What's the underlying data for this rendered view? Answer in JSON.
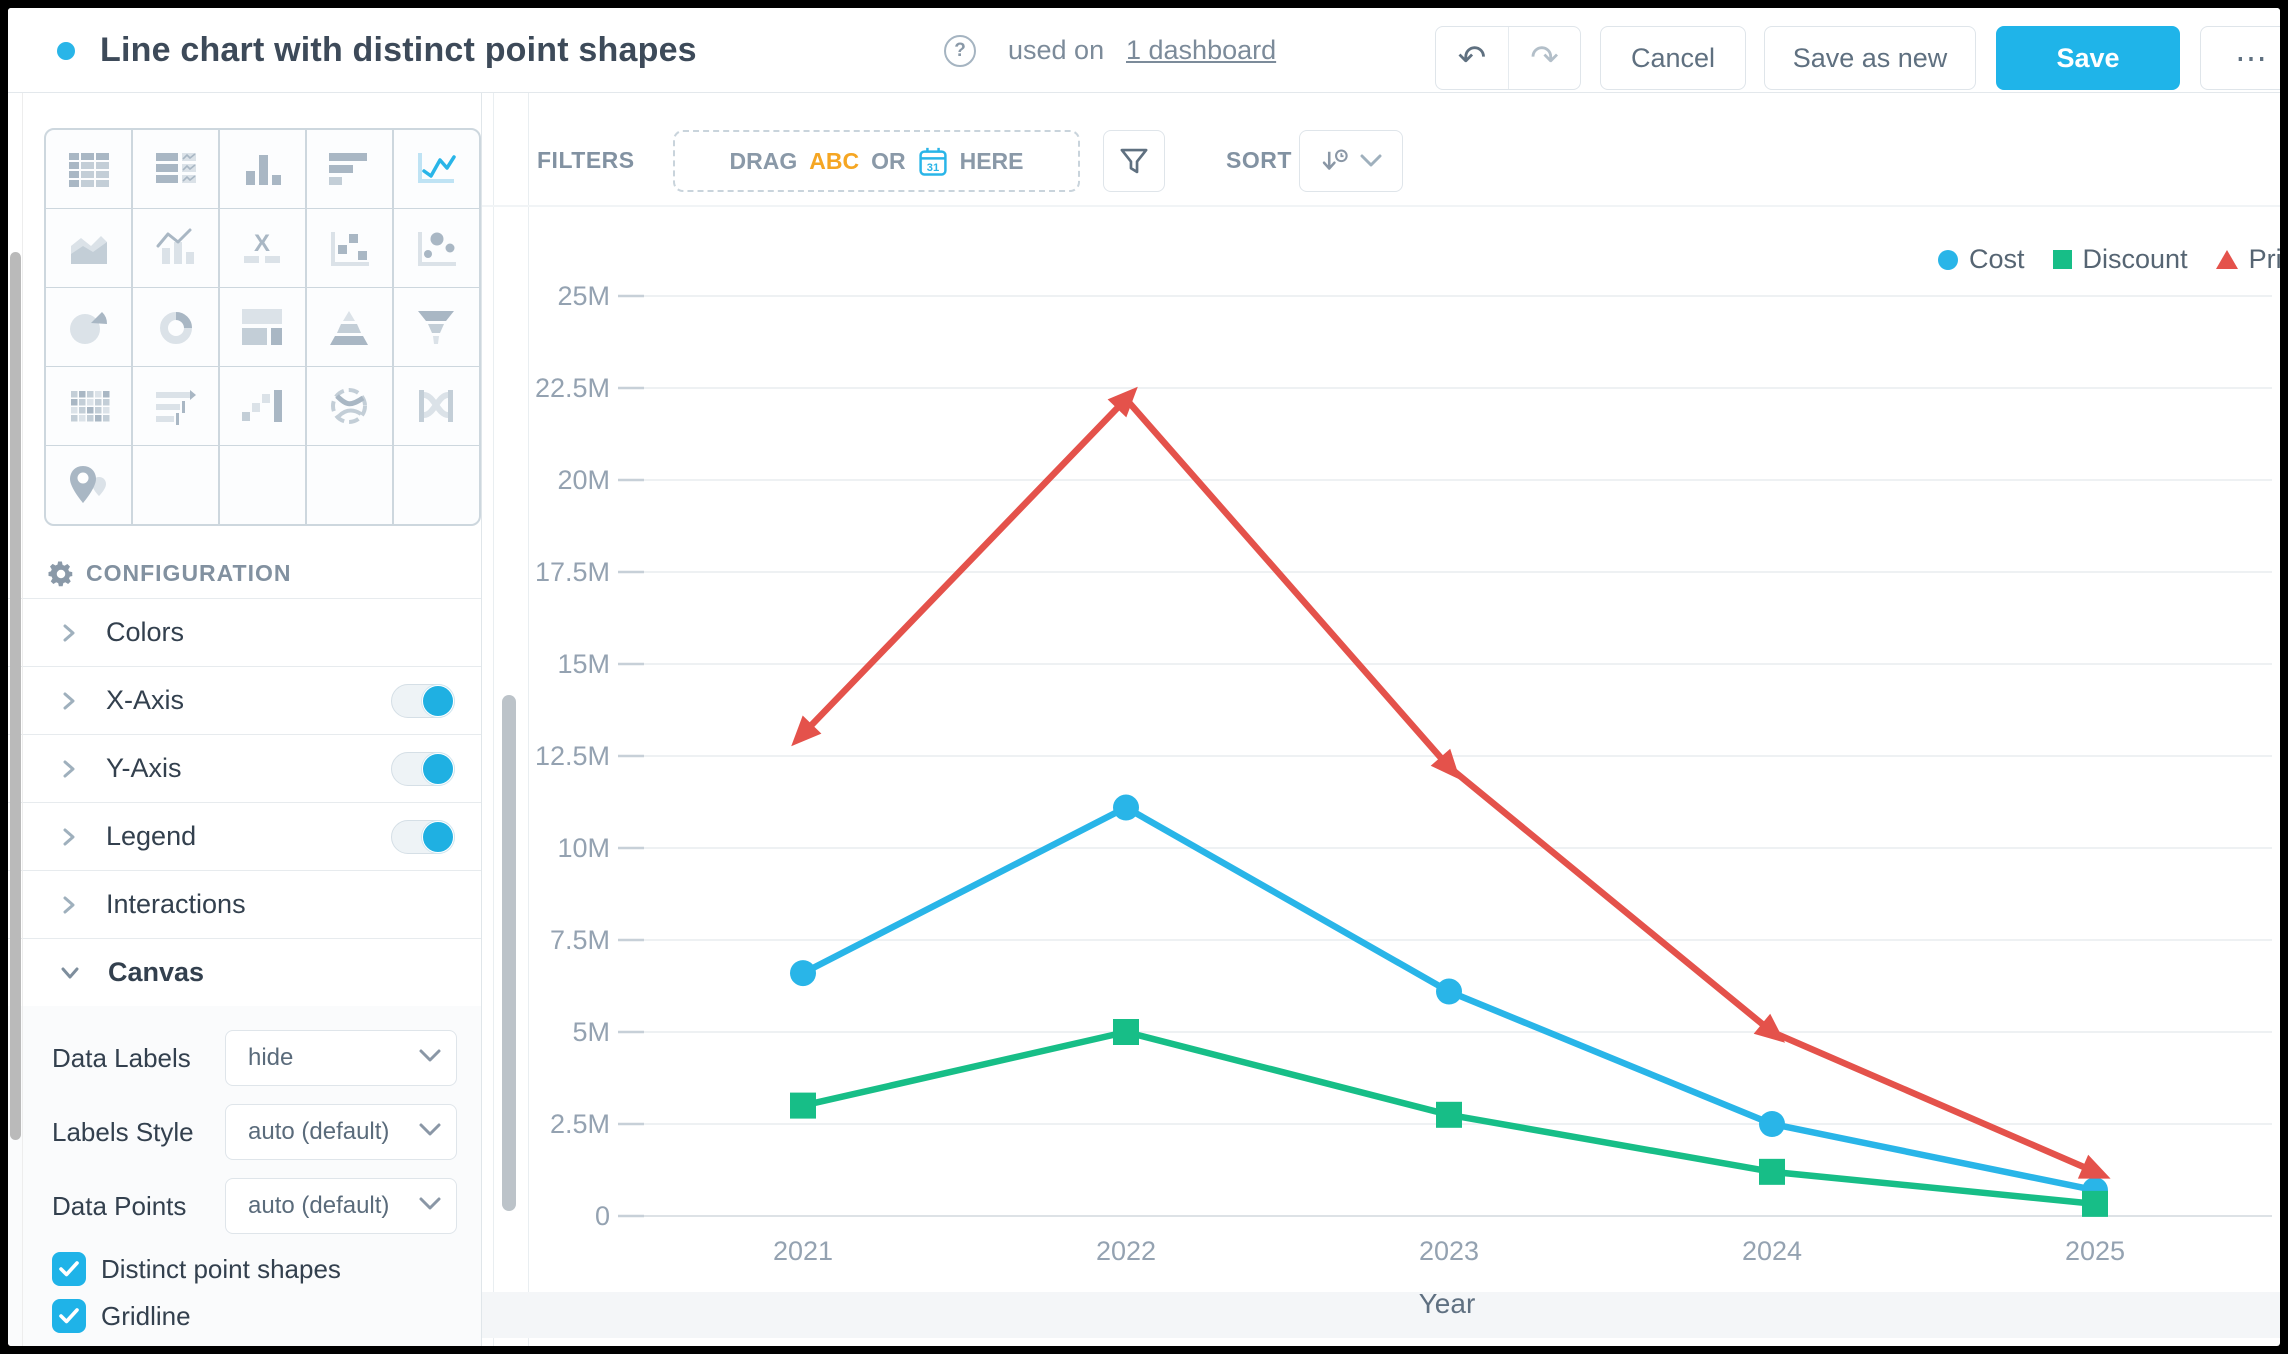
{
  "header": {
    "title": "Line chart with distinct point shapes",
    "help_glyph": "?",
    "used_on": "used on",
    "dashboard_link": "1 dashboard",
    "undo_glyph": "↶",
    "redo_glyph": "↷",
    "cancel_label": "Cancel",
    "save_as_new_label": "Save as new",
    "save_label": "Save",
    "more_glyph": "⋯",
    "accent_color": "#1FB4E9"
  },
  "chart_picker": {
    "selected": "line",
    "rows": [
      [
        "table",
        "pivot",
        "column",
        "bar",
        "line"
      ],
      [
        "area",
        "combo",
        "x-label",
        "scatter",
        "bubble"
      ],
      [
        "pie",
        "donut",
        "treemap",
        "pyramid",
        "funnel"
      ],
      [
        "grid",
        "bullet",
        "waterfall",
        "chord",
        "sankey"
      ],
      [
        "map",
        "",
        "",
        "",
        ""
      ]
    ]
  },
  "configuration": {
    "title": "CONFIGURATION",
    "sections": [
      {
        "label": "Colors",
        "expanded": false
      },
      {
        "label": "X-Axis",
        "expanded": false,
        "toggle": true
      },
      {
        "label": "Y-Axis",
        "expanded": false,
        "toggle": true
      },
      {
        "label": "Legend",
        "expanded": false,
        "toggle": true
      },
      {
        "label": "Interactions",
        "expanded": false
      },
      {
        "label": "Canvas",
        "expanded": true
      }
    ],
    "canvas_fields": [
      {
        "label": "Data Labels",
        "value": "hide"
      },
      {
        "label": "Labels Style",
        "value": "auto (default)"
      },
      {
        "label": "Data Points",
        "value": "auto (default)"
      }
    ],
    "checkboxes": [
      {
        "label": "Distinct point shapes",
        "checked": true
      },
      {
        "label": "Gridline",
        "checked": true
      }
    ]
  },
  "filters_bar": {
    "filters_label": "FILTERS",
    "drag_label": "DRAG",
    "abc_label": "ABC",
    "or_label": "OR",
    "here_label": "HERE",
    "calendar_day": "31",
    "sort_label": "SORT"
  },
  "chart_data": {
    "type": "line",
    "x": [
      "2021",
      "2022",
      "2023",
      "2024",
      "2025"
    ],
    "xlabel": "Year",
    "unit": "M",
    "ylim": [
      0,
      25
    ],
    "yticks": [
      "25M",
      "22.5M",
      "20M",
      "17.5M",
      "15M",
      "12.5M",
      "10M",
      "7.5M",
      "5M",
      "2.5M",
      "0"
    ],
    "ytick_values": [
      25,
      22.5,
      20,
      17.5,
      15,
      12.5,
      10,
      7.5,
      5,
      2.5,
      0
    ],
    "gridline": true,
    "legend_position": "top-right",
    "series": [
      {
        "name": "Cost",
        "marker": "circle",
        "color": "#29B5E8",
        "values": [
          6.6,
          11.1,
          6.1,
          2.5,
          0.7
        ]
      },
      {
        "name": "Discount",
        "marker": "square",
        "color": "#17BE87",
        "values": [
          3.0,
          5.0,
          2.75,
          1.2,
          0.33
        ]
      },
      {
        "name": "Price",
        "marker": "triangle",
        "color": "#E4524B",
        "values": [
          13.1,
          22.2,
          12.2,
          5.0,
          1.2
        ]
      }
    ]
  }
}
